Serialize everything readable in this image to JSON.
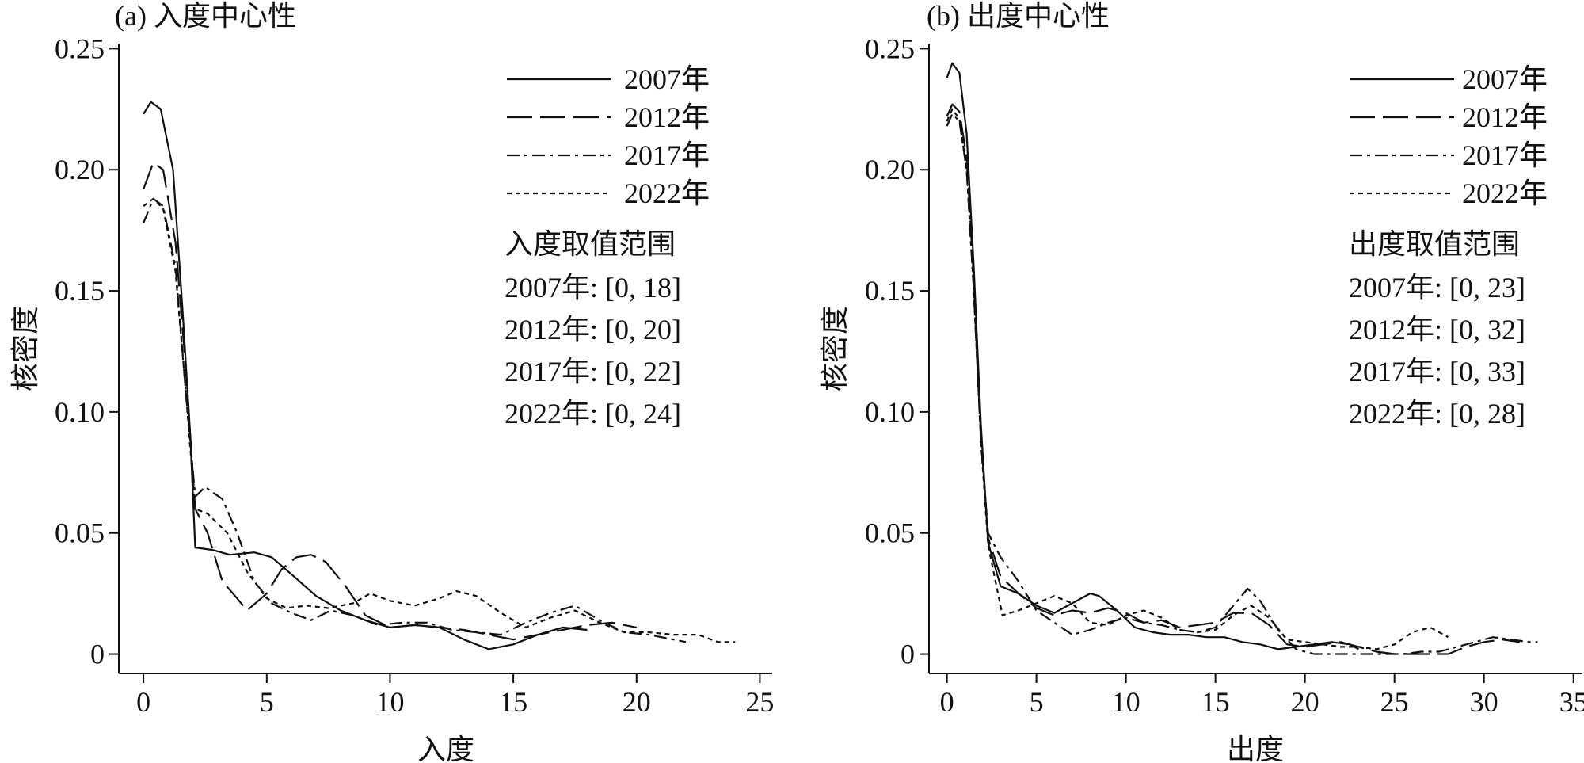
{
  "chart_data": [
    {
      "type": "line",
      "title": "(a) 入度中心性",
      "xlabel": "入度",
      "ylabel": "核密度",
      "xlim": [
        -1,
        25.5
      ],
      "ylim": [
        -0.008,
        0.257
      ],
      "xticks": [
        0,
        5,
        10,
        15,
        20,
        25
      ],
      "xtick_labels": [
        "0",
        "5",
        "10",
        "15",
        "20",
        "25"
      ],
      "yticks": [
        0,
        0.05,
        0.1,
        0.15,
        0.2,
        0.25
      ],
      "ytick_labels": [
        "0",
        "0.05",
        "0.10",
        "0.15",
        "0.20",
        "0.25"
      ],
      "legend_placement": "top-right",
      "range_title": "入度取值范围",
      "range_lines": [
        "2007年: [0, 18]",
        "2012年: [0, 20]",
        "2017年: [0, 22]",
        "2022年: [0, 24]"
      ],
      "series": [
        {
          "name": "2007年",
          "dash": "solid",
          "points": [
            [
              0,
              0.223
            ],
            [
              0.3,
              0.228
            ],
            [
              0.7,
              0.225
            ],
            [
              1.2,
              0.2
            ],
            [
              1.6,
              0.14
            ],
            [
              1.9,
              0.09
            ],
            [
              2.1,
              0.044
            ],
            [
              2.8,
              0.043
            ],
            [
              3.5,
              0.041
            ],
            [
              4.5,
              0.042
            ],
            [
              5.2,
              0.04
            ],
            [
              6,
              0.033
            ],
            [
              7,
              0.024
            ],
            [
              8,
              0.018
            ],
            [
              9,
              0.014
            ],
            [
              10,
              0.011
            ],
            [
              11,
              0.012
            ],
            [
              12,
              0.011
            ],
            [
              13,
              0.006
            ],
            [
              14,
              0.002
            ],
            [
              15,
              0.004
            ],
            [
              16,
              0.008
            ],
            [
              17,
              0.011
            ],
            [
              18,
              0.01
            ]
          ]
        },
        {
          "name": "2012年",
          "dash": "long-dash",
          "points": [
            [
              0,
              0.192
            ],
            [
              0.4,
              0.203
            ],
            [
              0.8,
              0.2
            ],
            [
              1.3,
              0.17
            ],
            [
              1.7,
              0.12
            ],
            [
              2.1,
              0.06
            ],
            [
              2.6,
              0.05
            ],
            [
              3.2,
              0.03
            ],
            [
              3.8,
              0.023
            ],
            [
              4.2,
              0.018
            ],
            [
              5,
              0.025
            ],
            [
              5.6,
              0.035
            ],
            [
              6.2,
              0.04
            ],
            [
              6.8,
              0.041
            ],
            [
              7.4,
              0.038
            ],
            [
              8.2,
              0.028
            ],
            [
              9,
              0.016
            ],
            [
              10,
              0.011
            ],
            [
              11,
              0.012
            ],
            [
              12,
              0.011
            ],
            [
              13,
              0.01
            ],
            [
              14,
              0.008
            ],
            [
              15,
              0.006
            ],
            [
              16,
              0.008
            ],
            [
              17,
              0.01
            ],
            [
              18,
              0.012
            ],
            [
              19,
              0.013
            ],
            [
              20,
              0.011
            ]
          ]
        },
        {
          "name": "2017年",
          "dash": "dash-dot",
          "points": [
            [
              0,
              0.178
            ],
            [
              0.4,
              0.188
            ],
            [
              0.8,
              0.185
            ],
            [
              1.3,
              0.16
            ],
            [
              1.7,
              0.11
            ],
            [
              2.1,
              0.065
            ],
            [
              2.5,
              0.069
            ],
            [
              3.2,
              0.064
            ],
            [
              3.8,
              0.05
            ],
            [
              4.5,
              0.03
            ],
            [
              5.2,
              0.021
            ],
            [
              6,
              0.017
            ],
            [
              6.8,
              0.014
            ],
            [
              7.6,
              0.018
            ],
            [
              8.5,
              0.016
            ],
            [
              9.5,
              0.012
            ],
            [
              10.5,
              0.013
            ],
            [
              11.5,
              0.013
            ],
            [
              12.5,
              0.01
            ],
            [
              13.5,
              0.009
            ],
            [
              14.5,
              0.008
            ],
            [
              15.5,
              0.013
            ],
            [
              16.5,
              0.017
            ],
            [
              17.5,
              0.02
            ],
            [
              18.5,
              0.014
            ],
            [
              19.5,
              0.009
            ],
            [
              20.5,
              0.008
            ],
            [
              21.5,
              0.006
            ],
            [
              22,
              0.005
            ]
          ]
        },
        {
          "name": "2022年",
          "dash": "short-dash",
          "points": [
            [
              0,
              0.185
            ],
            [
              0.4,
              0.188
            ],
            [
              0.8,
              0.184
            ],
            [
              1.3,
              0.158
            ],
            [
              1.7,
              0.11
            ],
            [
              2.1,
              0.06
            ],
            [
              2.6,
              0.058
            ],
            [
              3.4,
              0.05
            ],
            [
              4.2,
              0.034
            ],
            [
              5,
              0.023
            ],
            [
              5.8,
              0.019
            ],
            [
              6.6,
              0.02
            ],
            [
              7.5,
              0.019
            ],
            [
              8.5,
              0.021
            ],
            [
              9.2,
              0.025
            ],
            [
              10,
              0.022
            ],
            [
              11,
              0.02
            ],
            [
              12,
              0.023
            ],
            [
              12.7,
              0.026
            ],
            [
              13.5,
              0.024
            ],
            [
              14.5,
              0.017
            ],
            [
              15.5,
              0.011
            ],
            [
              16.5,
              0.015
            ],
            [
              17.5,
              0.018
            ],
            [
              18.5,
              0.013
            ],
            [
              19.5,
              0.009
            ],
            [
              20.5,
              0.009
            ],
            [
              21.5,
              0.008
            ],
            [
              22.5,
              0.008
            ],
            [
              23.3,
              0.005
            ],
            [
              24,
              0.005
            ]
          ]
        }
      ]
    },
    {
      "type": "line",
      "title": "(b) 出度中心性",
      "xlabel": "出度",
      "ylabel": "核密度",
      "xlim": [
        -1,
        35.5
      ],
      "ylim": [
        -0.008,
        0.257
      ],
      "xticks": [
        0,
        5,
        10,
        15,
        20,
        25,
        30,
        35
      ],
      "xtick_labels": [
        "0",
        "5",
        "10",
        "15",
        "20",
        "25",
        "30",
        "35"
      ],
      "yticks": [
        0,
        0.05,
        0.1,
        0.15,
        0.2,
        0.25
      ],
      "ytick_labels": [
        "0",
        "0.05",
        "0.10",
        "0.15",
        "0.20",
        "0.25"
      ],
      "legend_placement": "top-right",
      "range_title": "出度取值范围",
      "range_lines": [
        "2007年: [0, 23]",
        "2012年: [0, 32]",
        "2017年: [0, 33]",
        "2022年: [0, 28]"
      ],
      "series": [
        {
          "name": "2007年",
          "dash": "solid",
          "points": [
            [
              0,
              0.238
            ],
            [
              0.3,
              0.244
            ],
            [
              0.7,
              0.24
            ],
            [
              1.1,
              0.215
            ],
            [
              1.5,
              0.16
            ],
            [
              1.9,
              0.095
            ],
            [
              2.3,
              0.046
            ],
            [
              3,
              0.028
            ],
            [
              4,
              0.025
            ],
            [
              5,
              0.02
            ],
            [
              6,
              0.017
            ],
            [
              7,
              0.021
            ],
            [
              8,
              0.025
            ],
            [
              8.5,
              0.024
            ],
            [
              9.5,
              0.018
            ],
            [
              10.5,
              0.011
            ],
            [
              11.5,
              0.009
            ],
            [
              12.5,
              0.008
            ],
            [
              13.5,
              0.008
            ],
            [
              14.5,
              0.007
            ],
            [
              15.5,
              0.007
            ],
            [
              16.5,
              0.005
            ],
            [
              17.5,
              0.004
            ],
            [
              18.5,
              0.002
            ],
            [
              19.5,
              0.003
            ],
            [
              20.5,
              0.004
            ],
            [
              21.5,
              0.005
            ],
            [
              22.5,
              0.004
            ],
            [
              23,
              0.002
            ]
          ]
        },
        {
          "name": "2012年",
          "dash": "long-dash",
          "points": [
            [
              0,
              0.222
            ],
            [
              0.3,
              0.227
            ],
            [
              0.7,
              0.224
            ],
            [
              1.1,
              0.205
            ],
            [
              1.5,
              0.155
            ],
            [
              1.9,
              0.09
            ],
            [
              2.3,
              0.048
            ],
            [
              3,
              0.032
            ],
            [
              4,
              0.025
            ],
            [
              5,
              0.019
            ],
            [
              6,
              0.016
            ],
            [
              7,
              0.018
            ],
            [
              8,
              0.017
            ],
            [
              9,
              0.019
            ],
            [
              10,
              0.017
            ],
            [
              11,
              0.013
            ],
            [
              12,
              0.014
            ],
            [
              13,
              0.011
            ],
            [
              14,
              0.012
            ],
            [
              15,
              0.013
            ],
            [
              16,
              0.017
            ],
            [
              17,
              0.017
            ],
            [
              18,
              0.012
            ],
            [
              19,
              0.004
            ],
            [
              20,
              0.003
            ],
            [
              21,
              0.004
            ],
            [
              22,
              0.005
            ],
            [
              23,
              0.003
            ],
            [
              24,
              0.001
            ],
            [
              25,
              0
            ],
            [
              26,
              0
            ],
            [
              27,
              0
            ],
            [
              28,
              0
            ],
            [
              29,
              0.003
            ],
            [
              30,
              0.005
            ],
            [
              31,
              0.006
            ],
            [
              32,
              0.005
            ]
          ]
        },
        {
          "name": "2017年",
          "dash": "dash-dot",
          "points": [
            [
              0,
              0.218
            ],
            [
              0.3,
              0.223
            ],
            [
              0.7,
              0.22
            ],
            [
              1.1,
              0.2
            ],
            [
              1.5,
              0.15
            ],
            [
              1.9,
              0.088
            ],
            [
              2.3,
              0.05
            ],
            [
              3,
              0.04
            ],
            [
              4,
              0.03
            ],
            [
              5,
              0.018
            ],
            [
              6,
              0.013
            ],
            [
              7,
              0.008
            ],
            [
              8,
              0.01
            ],
            [
              9,
              0.013
            ],
            [
              10,
              0.015
            ],
            [
              11,
              0.013
            ],
            [
              12,
              0.012
            ],
            [
              13,
              0.01
            ],
            [
              14,
              0.009
            ],
            [
              15,
              0.011
            ],
            [
              16,
              0.02
            ],
            [
              16.8,
              0.027
            ],
            [
              17.5,
              0.022
            ],
            [
              18.5,
              0.01
            ],
            [
              19.5,
              0.002
            ],
            [
              20.5,
              0
            ],
            [
              21.5,
              0
            ],
            [
              22.5,
              0
            ],
            [
              23.5,
              0
            ],
            [
              24.5,
              0
            ],
            [
              25.5,
              0
            ],
            [
              26.5,
              0.001
            ],
            [
              27.5,
              0.001
            ],
            [
              28.5,
              0.003
            ],
            [
              29.5,
              0.005
            ],
            [
              30.5,
              0.007
            ],
            [
              31.5,
              0.006
            ],
            [
              32.5,
              0.005
            ],
            [
              33,
              0.005
            ]
          ]
        },
        {
          "name": "2022年",
          "dash": "short-dash",
          "points": [
            [
              0,
              0.22
            ],
            [
              0.3,
              0.225
            ],
            [
              0.7,
              0.221
            ],
            [
              1.1,
              0.2
            ],
            [
              1.5,
              0.15
            ],
            [
              1.9,
              0.088
            ],
            [
              2.3,
              0.045
            ],
            [
              3.1,
              0.016
            ],
            [
              4,
              0.018
            ],
            [
              5,
              0.021
            ],
            [
              6,
              0.024
            ],
            [
              7,
              0.021
            ],
            [
              8,
              0.013
            ],
            [
              9,
              0.012
            ],
            [
              10,
              0.016
            ],
            [
              11,
              0.018
            ],
            [
              12,
              0.015
            ],
            [
              13,
              0.01
            ],
            [
              14,
              0.009
            ],
            [
              15,
              0.01
            ],
            [
              16,
              0.016
            ],
            [
              17,
              0.02
            ],
            [
              18,
              0.015
            ],
            [
              19,
              0.006
            ],
            [
              20,
              0.005
            ],
            [
              21,
              0.004
            ],
            [
              22,
              0.003
            ],
            [
              23,
              0.003
            ],
            [
              24,
              0.002
            ],
            [
              25,
              0.004
            ],
            [
              26,
              0.009
            ],
            [
              27,
              0.011
            ],
            [
              28,
              0.007
            ]
          ]
        }
      ]
    }
  ]
}
